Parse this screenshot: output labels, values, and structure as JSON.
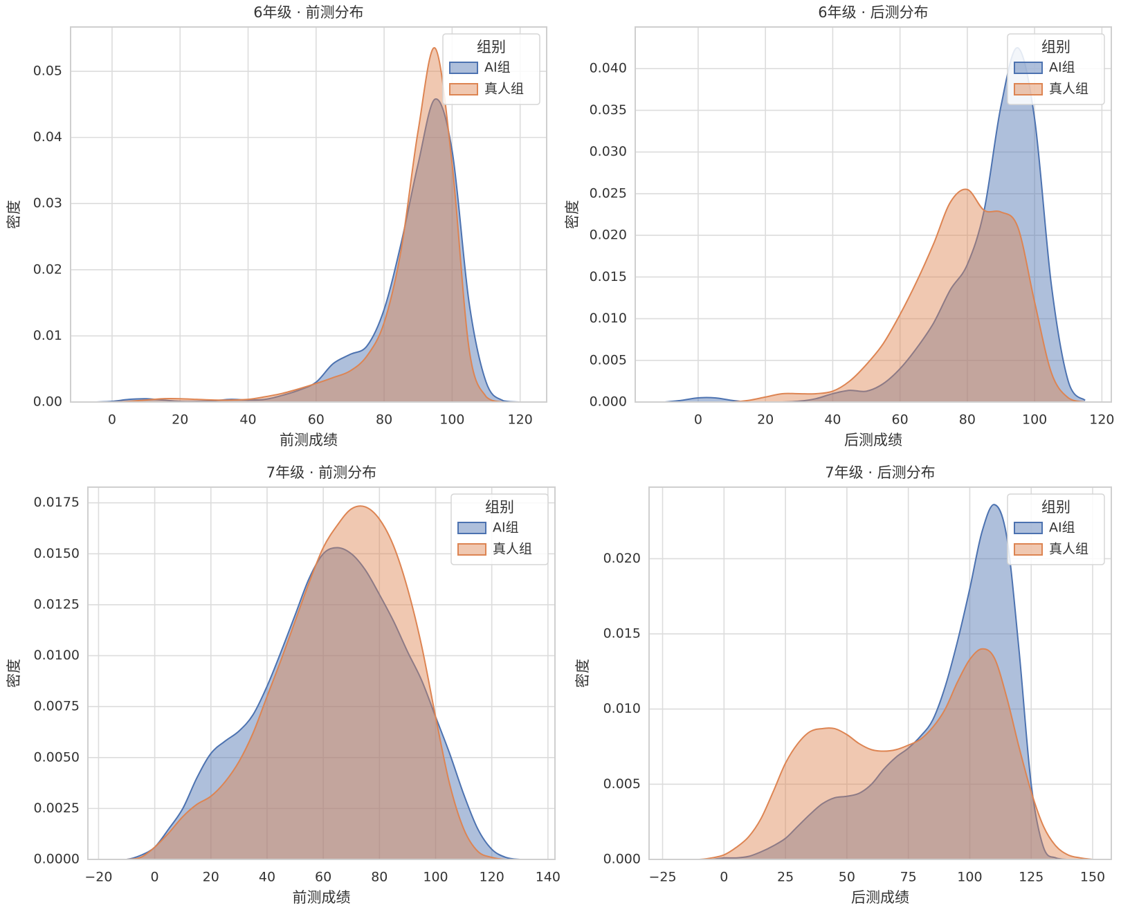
{
  "chart_data": [
    {
      "type": "kde",
      "title": "6年级 · 前测分布",
      "xlabel": "前测成绩",
      "ylabel": "密度",
      "x": [
        -5,
        0,
        5,
        10,
        15,
        20,
        25,
        30,
        35,
        40,
        45,
        50,
        55,
        60,
        65,
        70,
        75,
        80,
        85,
        90,
        95,
        100,
        105,
        110,
        115,
        120
      ],
      "series": [
        {
          "name": "AI组",
          "color": "#4c72b0",
          "values": [
            0,
            0.0001,
            0.0004,
            0.0005,
            0.0003,
            0.0001,
            0.0001,
            0.0002,
            0.0004,
            0.0003,
            0.0004,
            0.001,
            0.0018,
            0.003,
            0.0058,
            0.0072,
            0.0085,
            0.014,
            0.024,
            0.036,
            0.0458,
            0.038,
            0.015,
            0.003,
            0.0002,
            0
          ]
        },
        {
          "name": "真人组",
          "color": "#dd8452",
          "values": [
            0,
            0,
            0.0001,
            0.0003,
            0.0005,
            0.0005,
            0.0004,
            0.0003,
            0.0003,
            0.0004,
            0.0008,
            0.0013,
            0.002,
            0.0028,
            0.0037,
            0.0047,
            0.007,
            0.012,
            0.023,
            0.041,
            0.0535,
            0.036,
            0.008,
            0.0008,
            0,
            0
          ]
        }
      ],
      "xlim": [
        -12.2,
        127.8
      ],
      "ylim": [
        0,
        0.0567
      ],
      "xticks": [
        0,
        20,
        40,
        60,
        80,
        100,
        120
      ],
      "yticks": [
        {
          "value": 0,
          "label": "0.00"
        },
        0.01,
        0.02,
        0.03,
        0.04,
        0.05
      ],
      "grid": true,
      "legend_title": "组别",
      "legend": "upper right"
    },
    {
      "type": "kde",
      "title": "6年级 · 后测分布",
      "xlabel": "后测成绩",
      "ylabel": "密度",
      "x": [
        -10,
        -5,
        0,
        5,
        10,
        15,
        20,
        25,
        30,
        35,
        40,
        45,
        50,
        55,
        60,
        65,
        70,
        75,
        80,
        85,
        90,
        95,
        100,
        105,
        110,
        115
      ],
      "series": [
        {
          "name": "AI组",
          "color": "#4c72b0",
          "values": [
            0,
            0.0002,
            0.0005,
            0.0005,
            0.0002,
            0,
            0,
            0,
            0.0001,
            0.0004,
            0.001,
            0.0014,
            0.0013,
            0.0022,
            0.004,
            0.0065,
            0.0095,
            0.0135,
            0.0165,
            0.023,
            0.0355,
            0.0425,
            0.034,
            0.014,
            0.0025,
            0.0002
          ]
        },
        {
          "name": "真人组",
          "color": "#dd8452",
          "values": [
            0,
            0,
            0,
            0,
            0,
            0.0002,
            0.0006,
            0.001,
            0.001,
            0.001,
            0.0013,
            0.0025,
            0.0045,
            0.007,
            0.0105,
            0.0145,
            0.019,
            0.024,
            0.0255,
            0.023,
            0.0228,
            0.021,
            0.012,
            0.0035,
            0.0005,
            0
          ]
        }
      ],
      "xlim": [
        -18.7,
        122.8
      ],
      "ylim": [
        0,
        0.045
      ],
      "xticks": [
        0,
        20,
        40,
        60,
        80,
        100,
        120
      ],
      "yticks": [
        {
          "value": 0,
          "label": "0.000"
        },
        0.005,
        {
          "value": 0.01,
          "label": "0.010"
        },
        0.015,
        {
          "value": 0.02,
          "label": "0.020"
        },
        0.025,
        {
          "value": 0.03,
          "label": "0.030"
        },
        0.035,
        {
          "value": 0.04,
          "label": "0.040"
        }
      ],
      "grid": true,
      "legend_title": "组别",
      "legend": "upper right"
    },
    {
      "type": "kde",
      "title": "7年级 · 前测分布",
      "xlabel": "前测成绩",
      "ylabel": "密度",
      "x": [
        -20,
        -15,
        -10,
        -5,
        0,
        5,
        10,
        15,
        20,
        25,
        30,
        35,
        40,
        45,
        50,
        55,
        60,
        65,
        70,
        75,
        80,
        85,
        90,
        95,
        100,
        105,
        110,
        115,
        120,
        125,
        130,
        135
      ],
      "series": [
        {
          "name": "AI组",
          "color": "#4c72b0",
          "values": [
            0,
            0,
            0,
            0.0002,
            0.0006,
            0.0015,
            0.0025,
            0.004,
            0.0052,
            0.0058,
            0.0063,
            0.0071,
            0.0085,
            0.0102,
            0.012,
            0.0138,
            0.015,
            0.0153,
            0.015,
            0.0142,
            0.013,
            0.0117,
            0.0102,
            0.0088,
            0.007,
            0.0052,
            0.0032,
            0.0015,
            0.0005,
            0.0001,
            0,
            0
          ]
        },
        {
          "name": "真人组",
          "color": "#dd8452",
          "values": [
            0,
            0,
            0,
            0.0001,
            0.0006,
            0.0013,
            0.0021,
            0.0027,
            0.0031,
            0.0038,
            0.0048,
            0.0062,
            0.008,
            0.0098,
            0.0117,
            0.0136,
            0.0153,
            0.0164,
            0.0172,
            0.0173,
            0.0167,
            0.0154,
            0.0133,
            0.0105,
            0.007,
            0.0037,
            0.0015,
            0.0004,
            0.0001,
            0,
            0,
            0
          ]
        }
      ],
      "xlim": [
        -23.8,
        142.5
      ],
      "ylim": [
        0,
        0.01827
      ],
      "xticks": [
        {
          "value": -20,
          "label": "−20"
        },
        0,
        20,
        40,
        60,
        80,
        100,
        120,
        140
      ],
      "yticks": [
        {
          "value": 0,
          "label": "0.0000"
        },
        0.0025,
        {
          "value": 0.005,
          "label": "0.0050"
        },
        0.0075,
        {
          "value": 0.01,
          "label": "0.0100"
        },
        0.0125,
        {
          "value": 0.015,
          "label": "0.0150"
        },
        0.0175
      ],
      "grid": true,
      "legend_title": "组别",
      "legend": "upper right"
    },
    {
      "type": "kde",
      "title": "7年级 · 后测分布",
      "xlabel": "后测成绩",
      "ylabel": "密度",
      "x": [
        -25,
        -20,
        -15,
        -10,
        -5,
        0,
        5,
        10,
        15,
        20,
        25,
        30,
        35,
        40,
        45,
        50,
        55,
        60,
        65,
        70,
        75,
        80,
        85,
        90,
        95,
        100,
        105,
        110,
        115,
        120,
        125,
        130,
        135,
        140,
        145,
        150
      ],
      "series": [
        {
          "name": "AI组",
          "color": "#4c72b0",
          "values": [
            0,
            0,
            0,
            0,
            0,
            0.0001,
            0.0001,
            0.0002,
            0.0005,
            0.0009,
            0.0014,
            0.0022,
            0.003,
            0.0037,
            0.0041,
            0.0042,
            0.0044,
            0.005,
            0.006,
            0.0068,
            0.0074,
            0.0082,
            0.0093,
            0.0115,
            0.0145,
            0.018,
            0.0218,
            0.0236,
            0.0215,
            0.014,
            0.005,
            0.0008,
            0.0001,
            0,
            0,
            0
          ]
        },
        {
          "name": "真人组",
          "color": "#dd8452",
          "values": [
            0,
            0,
            0,
            0,
            0.0001,
            0.0003,
            0.0008,
            0.0015,
            0.0027,
            0.0045,
            0.0064,
            0.0077,
            0.0085,
            0.0087,
            0.0087,
            0.0083,
            0.0077,
            0.0073,
            0.0072,
            0.0073,
            0.0076,
            0.008,
            0.0088,
            0.01,
            0.0118,
            0.0133,
            0.014,
            0.0134,
            0.0108,
            0.0075,
            0.0045,
            0.0022,
            0.0009,
            0.0003,
            0.0001,
            0
          ]
        }
      ],
      "xlim": [
        -30.5,
        157.6
      ],
      "ylim": [
        0,
        0.02476
      ],
      "xticks": [
        {
          "value": -25,
          "label": "−25"
        },
        0,
        25,
        50,
        75,
        100,
        125,
        150
      ],
      "yticks": [
        {
          "value": 0,
          "label": "0.000"
        },
        0.005,
        {
          "value": 0.01,
          "label": "0.010"
        },
        0.015,
        {
          "value": 0.02,
          "label": "0.020"
        }
      ],
      "grid": true,
      "legend_title": "组别",
      "legend": "upper right"
    }
  ]
}
